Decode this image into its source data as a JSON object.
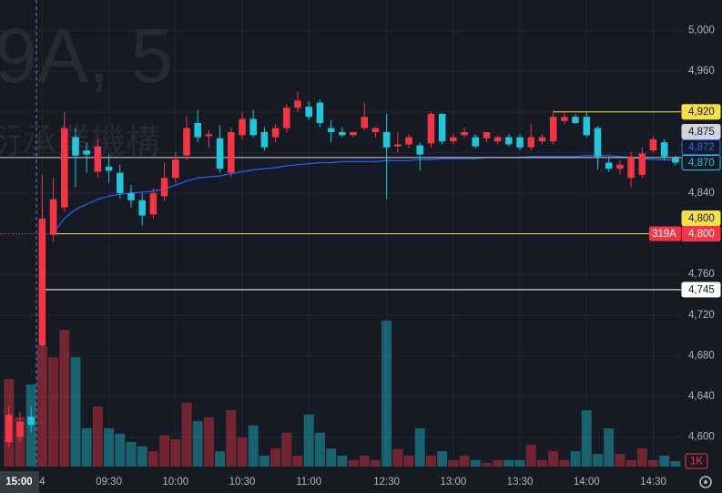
{
  "chart_data": {
    "type": "candlestick",
    "watermark": [
      "9A, 5",
      "衍承業機構"
    ],
    "x": [
      0,
      1,
      2,
      3,
      4,
      5,
      6,
      7,
      8,
      9,
      10,
      11,
      12,
      13,
      14,
      15,
      16,
      17,
      18,
      19,
      20,
      21,
      22,
      23,
      24,
      25,
      26,
      27,
      28,
      29,
      30,
      31,
      32,
      33,
      34,
      35,
      36,
      37,
      38,
      39,
      40,
      41,
      42,
      43,
      44,
      45,
      46,
      47,
      48,
      49,
      50,
      51,
      52,
      53,
      54,
      55,
      56,
      57,
      58,
      59,
      60
    ],
    "open": [
      4595,
      4600,
      4620,
      4690,
      4799,
      4826,
      4895,
      4882,
      4861,
      4866,
      4860,
      4840,
      4833,
      4819,
      4837,
      4855,
      4877,
      4909,
      4896,
      4894,
      4860,
      4897,
      4913,
      4900,
      4895,
      4904,
      4924,
      4925,
      4929,
      4904,
      4900,
      4897,
      4904,
      4900,
      4900,
      4886,
      4888,
      4887,
      4889,
      4918,
      4891,
      4897,
      4895,
      4894,
      4891,
      4895,
      4895,
      4885,
      4891,
      4891,
      4911,
      4915,
      4915,
      4904,
      4870,
      4864,
      4855,
      4858,
      4882,
      4890,
      4875
    ],
    "high": [
      4630,
      4625,
      4630,
      4858,
      4855,
      4920,
      4904,
      4890,
      4893,
      4878,
      4868,
      4848,
      4840,
      4845,
      4870,
      4880,
      4915,
      4922,
      4902,
      4907,
      4905,
      4920,
      4922,
      4905,
      4908,
      4928,
      4940,
      4930,
      4932,
      4912,
      4905,
      4900,
      4929,
      4905,
      4918,
      4900,
      4898,
      4890,
      4920,
      4918,
      4898,
      4905,
      4898,
      4900,
      4897,
      4898,
      4898,
      4908,
      4898,
      4922,
      4920,
      4918,
      4920,
      4906,
      4876,
      4872,
      4880,
      4885,
      4896,
      4893,
      4877
    ],
    "low": [
      4590,
      4595,
      4605,
      4688,
      4792,
      4822,
      4846,
      4860,
      4855,
      4850,
      4835,
      4826,
      4808,
      4815,
      4832,
      4850,
      4872,
      4890,
      4885,
      4860,
      4856,
      4893,
      4895,
      4882,
      4890,
      4900,
      4920,
      4912,
      4905,
      4890,
      4895,
      4895,
      4902,
      4895,
      4834,
      4880,
      4884,
      4862,
      4885,
      4888,
      4888,
      4895,
      4884,
      4890,
      4888,
      4886,
      4882,
      4882,
      4888,
      4888,
      4908,
      4908,
      4895,
      4863,
      4861,
      4858,
      4846,
      4855,
      4880,
      4872,
      4867
    ],
    "close": [
      4622,
      4615,
      4612,
      4815,
      4834,
      4904,
      4877,
      4878,
      4886,
      4862,
      4840,
      4833,
      4818,
      4840,
      4855,
      4873,
      4904,
      4895,
      4898,
      4864,
      4900,
      4913,
      4897,
      4885,
      4904,
      4924,
      4931,
      4915,
      4909,
      4900,
      4897,
      4900,
      4915,
      4904,
      4885,
      4888,
      4895,
      4878,
      4918,
      4891,
      4895,
      4900,
      4886,
      4900,
      4895,
      4888,
      4885,
      4895,
      4895,
      4915,
      4915,
      4909,
      4897,
      4876,
      4864,
      4868,
      4876,
      4879,
      4893,
      4876,
      4870
    ],
    "volume": [
      16,
      9,
      15,
      22,
      20,
      25,
      20,
      7,
      11,
      7,
      6,
      4.5,
      3.7,
      2.8,
      5.7,
      5,
      11.7,
      8.3,
      9,
      2.8,
      10.3,
      5.3,
      7.5,
      2,
      3.3,
      6.2,
      2,
      9.5,
      6.2,
      3.3,
      2,
      1.2,
      2,
      1.2,
      26.7,
      3.2,
      2,
      7,
      2,
      2.8,
      1.2,
      2,
      1.2,
      0.7,
      1.2,
      1.2,
      1.2,
      4,
      1.2,
      2.8,
      1.2,
      2.8,
      10.3,
      2.3,
      7,
      2.3,
      1.2,
      3.3,
      1.2,
      2,
      1
    ],
    "volume_label": "1K",
    "vwap": [
      null,
      null,
      null,
      null,
      4801,
      4815,
      4824,
      4829,
      4834,
      4837,
      4839,
      4840,
      4841,
      4842,
      4844,
      4848,
      4852,
      4855,
      4856,
      4857,
      4859,
      4861,
      4863,
      4864,
      4865,
      4867,
      4868,
      4869,
      4870,
      4870,
      4871,
      4871,
      4871,
      4871,
      4872,
      4872,
      4872,
      4873,
      4873,
      4874,
      4874,
      4874,
      4874,
      4875,
      4875,
      4875,
      4875,
      4876,
      4876,
      4876,
      4876,
      4876,
      4877,
      4877,
      4877,
      4876,
      4875,
      4874,
      4873,
      4873,
      4872
    ],
    "up_color": "#f23645",
    "down_color": "#22c5d9",
    "vwap_color": "#2962ff",
    "xlim": [
      -0.8,
      60.5
    ],
    "xticks": [
      {
        "value": 3,
        "label": "4"
      },
      {
        "value": 9,
        "label": "09:30"
      },
      {
        "value": 15,
        "label": "10:00"
      },
      {
        "value": 21,
        "label": "10:30"
      },
      {
        "value": 27,
        "label": "11:00"
      },
      {
        "value": 34,
        "label": "12:30"
      },
      {
        "value": 40,
        "label": "13:00"
      },
      {
        "value": 46,
        "label": "13:30"
      },
      {
        "value": 52,
        "label": "14:00"
      },
      {
        "value": 58,
        "label": "14:30"
      }
    ],
    "ylim": [
      4571,
      5030
    ],
    "yticks": [
      {
        "value": 5000,
        "label": "5,000"
      },
      {
        "value": 4960,
        "label": "4,960"
      },
      {
        "value": 4920,
        "label": "4,920"
      },
      {
        "value": 4880,
        "label": "4,880"
      },
      {
        "value": 4840,
        "label": "4,840"
      },
      {
        "value": 4800,
        "label": "4,800"
      },
      {
        "value": 4760,
        "label": "4,760"
      },
      {
        "value": 4720,
        "label": "4,720"
      },
      {
        "value": 4680,
        "label": "4,680"
      },
      {
        "value": 4640,
        "label": "4,640"
      },
      {
        "value": 4600,
        "label": "4,600"
      }
    ],
    "vlim": [
      0,
      30
    ],
    "grid": true,
    "cursor_label": "15:00",
    "price_lines": [
      {
        "value": 4920,
        "label": "4,920",
        "color": "#f5e04a",
        "line": "solid",
        "box": "fill",
        "from": 49
      },
      {
        "value": 4875,
        "label": "4,875",
        "color": "#d1d4dc",
        "line": "solid",
        "box": "fill",
        "from": -0.8
      },
      {
        "value": 4872,
        "label": "4,872",
        "color": "#2962ff",
        "line": "none",
        "box": "outline",
        "from": 60
      },
      {
        "value": 4870,
        "label": "4,870",
        "color": "#22c5d9",
        "line": "none",
        "box": "outline",
        "from": 60
      },
      {
        "value": 4800,
        "label": "4,800",
        "tag": "319A",
        "color": "#f23645",
        "line": "dotted",
        "box": "fill",
        "from": -0.8
      },
      {
        "value": 4800,
        "label": "4,800",
        "color": "#f5e04a",
        "line": "solid",
        "box": "fill",
        "from": 4
      },
      {
        "value": 4745,
        "label": "4,745",
        "color": "#ffffff",
        "line": "solid",
        "box": "fill",
        "from": 3
      }
    ]
  }
}
